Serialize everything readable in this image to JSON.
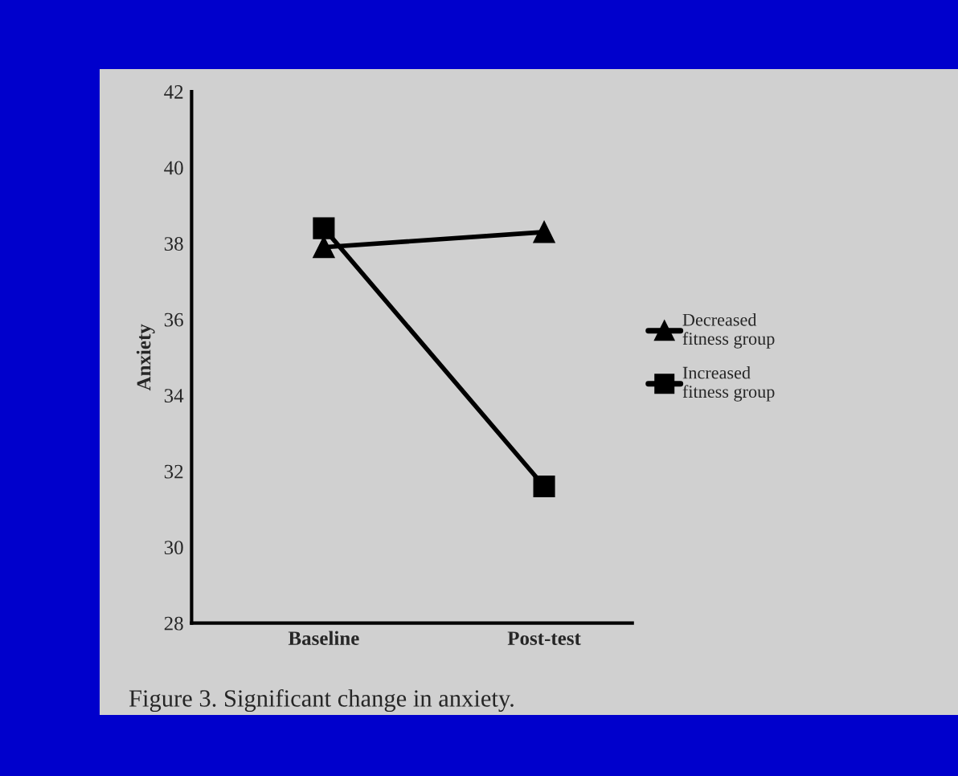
{
  "chart_data": {
    "type": "line",
    "ylabel": "Anxiety",
    "categories": [
      "Baseline",
      "Post-test"
    ],
    "series": [
      {
        "name": "Decreased\nfitness group",
        "color": "#000000",
        "marker": "triangle",
        "values": [
          37.9,
          38.3
        ]
      },
      {
        "name": "Increased\nfitness group",
        "color": "#000000",
        "marker": "square",
        "values": [
          38.4,
          31.6
        ]
      }
    ],
    "ylim": [
      28,
      42
    ],
    "yticks": [
      28,
      30,
      32,
      34,
      36,
      38,
      40,
      42
    ],
    "legend": "right",
    "line_style": "solid",
    "annotations": [
      "Figure 3. Significant change in anxiety."
    ]
  }
}
